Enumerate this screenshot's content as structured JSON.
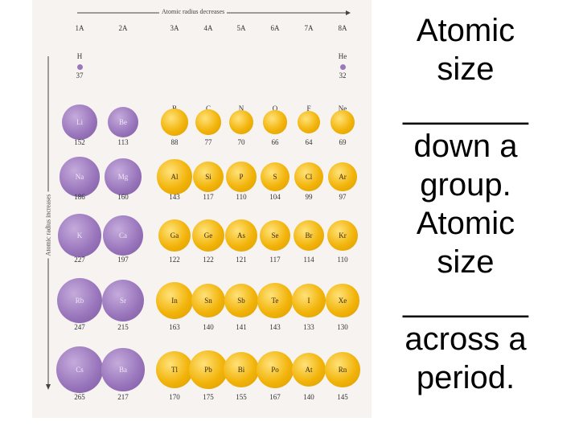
{
  "figure": {
    "top_arrow_label": "Atomic radius decreases",
    "side_arrow_label": "Atomic radius increases",
    "groups": [
      "1A",
      "2A",
      "3A",
      "4A",
      "5A",
      "6A",
      "7A",
      "8A"
    ],
    "period1": [
      {
        "symbol": "H",
        "radius": "37"
      },
      {
        "symbol": "He",
        "radius": "32"
      }
    ],
    "rows": [
      [
        {
          "symbol": "Li",
          "radius": "152"
        },
        {
          "symbol": "Be",
          "radius": "113"
        },
        {
          "symbol": "B",
          "radius": "88"
        },
        {
          "symbol": "C",
          "radius": "77"
        },
        {
          "symbol": "N",
          "radius": "70"
        },
        {
          "symbol": "O",
          "radius": "66"
        },
        {
          "symbol": "F",
          "radius": "64"
        },
        {
          "symbol": "Ne",
          "radius": "69"
        }
      ],
      [
        {
          "symbol": "Na",
          "radius": "186"
        },
        {
          "symbol": "Mg",
          "radius": "160"
        },
        {
          "symbol": "Al",
          "radius": "143"
        },
        {
          "symbol": "Si",
          "radius": "117"
        },
        {
          "symbol": "P",
          "radius": "110"
        },
        {
          "symbol": "S",
          "radius": "104"
        },
        {
          "symbol": "Cl",
          "radius": "99"
        },
        {
          "symbol": "Ar",
          "radius": "97"
        }
      ],
      [
        {
          "symbol": "K",
          "radius": "227"
        },
        {
          "symbol": "Ca",
          "radius": "197"
        },
        {
          "symbol": "Ga",
          "radius": "122"
        },
        {
          "symbol": "Ge",
          "radius": "122"
        },
        {
          "symbol": "As",
          "radius": "121"
        },
        {
          "symbol": "Se",
          "radius": "117"
        },
        {
          "symbol": "Br",
          "radius": "114"
        },
        {
          "symbol": "Kr",
          "radius": "110"
        }
      ],
      [
        {
          "symbol": "Rb",
          "radius": "247"
        },
        {
          "symbol": "Sr",
          "radius": "215"
        },
        {
          "symbol": "In",
          "radius": "163"
        },
        {
          "symbol": "Sn",
          "radius": "140"
        },
        {
          "symbol": "Sb",
          "radius": "141"
        },
        {
          "symbol": "Te",
          "radius": "143"
        },
        {
          "symbol": "I",
          "radius": "133"
        },
        {
          "symbol": "Xe",
          "radius": "130"
        }
      ],
      [
        {
          "symbol": "Cs",
          "radius": "265"
        },
        {
          "symbol": "Ba",
          "radius": "217"
        },
        {
          "symbol": "Tl",
          "radius": "170"
        },
        {
          "symbol": "Pb",
          "radius": "175"
        },
        {
          "symbol": "Bi",
          "radius": "155"
        },
        {
          "symbol": "Po",
          "radius": "167"
        },
        {
          "symbol": "At",
          "radius": "140"
        },
        {
          "symbol": "Rn",
          "radius": "145"
        }
      ]
    ],
    "colors": {
      "s_block": "#9b78bd",
      "p_block": "#f2b40a",
      "background": "#f6f3f1"
    }
  },
  "slide_text": {
    "line1": "Atomic",
    "line2": "size",
    "blank1": "_______",
    "line3": "down a",
    "line4": "group.",
    "line5": "Atomic",
    "line6": "size",
    "blank2": "_______",
    "line7": "across a",
    "line8": "period."
  }
}
